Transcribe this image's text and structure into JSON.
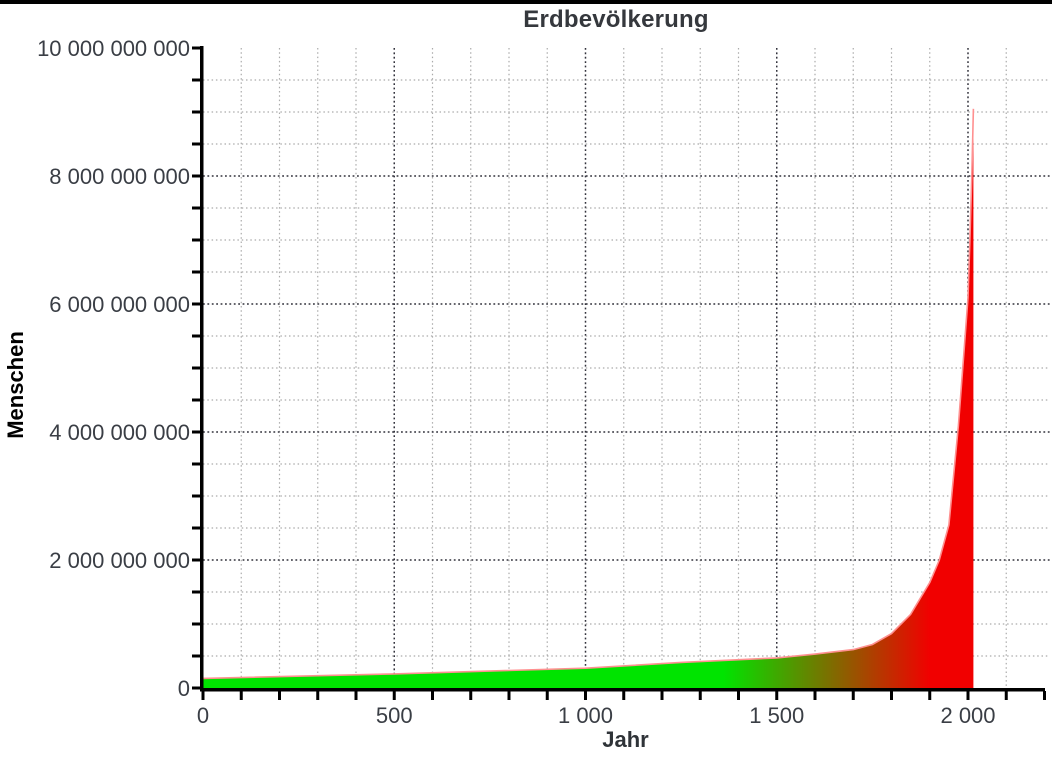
{
  "page": {
    "background": "#ffffff",
    "top_border_color": "#000000"
  },
  "chart_data": {
    "type": "area",
    "title": "Erdbevölkerung",
    "xlabel": "Jahr",
    "ylabel": "Menschen",
    "xlim": [
      0,
      2200
    ],
    "ylim": [
      0,
      10000000000
    ],
    "x_major_ticks": {
      "values": [
        0,
        500,
        1000,
        1500,
        2000
      ],
      "labels": [
        "0",
        "500",
        "1 000",
        "1 500",
        "2 000"
      ]
    },
    "x_minor_tick_step": 100,
    "y_major_ticks": {
      "values": [
        0,
        2000000000,
        4000000000,
        6000000000,
        8000000000,
        10000000000
      ],
      "labels": [
        "0",
        "2 000 000 000",
        "4 000 000 000",
        "6 000 000 000",
        "8 000 000 000",
        "10 000 000 000"
      ]
    },
    "y_minor_tick_step": 500000000,
    "grid": {
      "style": "dotted",
      "minor": true,
      "major": true
    },
    "legend": "none",
    "series": [
      {
        "name": "Erdbevölkerung",
        "points": [
          [
            0,
            150000000
          ],
          [
            500,
            220000000
          ],
          [
            1000,
            310000000
          ],
          [
            1250,
            400000000
          ],
          [
            1500,
            470000000
          ],
          [
            1600,
            530000000
          ],
          [
            1700,
            600000000
          ],
          [
            1750,
            680000000
          ],
          [
            1800,
            850000000
          ],
          [
            1850,
            1150000000
          ],
          [
            1900,
            1650000000
          ],
          [
            1925,
            2000000000
          ],
          [
            1950,
            2550000000
          ],
          [
            1975,
            4100000000
          ],
          [
            1990,
            5300000000
          ],
          [
            2000,
            6100000000
          ],
          [
            2005,
            7000000000
          ],
          [
            2010,
            8000000000
          ],
          [
            2014,
            9050000000
          ]
        ]
      }
    ],
    "colors": {
      "fill_gradient_start": "#00e400",
      "fill_gradient_end": "#f10000",
      "gradient_blend_years": [
        1360,
        1900
      ],
      "series_line": "#ff9090",
      "axis": "#000000",
      "tick_text": "#3a3e45",
      "grid_minor": "#ababab",
      "grid_major": "#32323c"
    }
  }
}
